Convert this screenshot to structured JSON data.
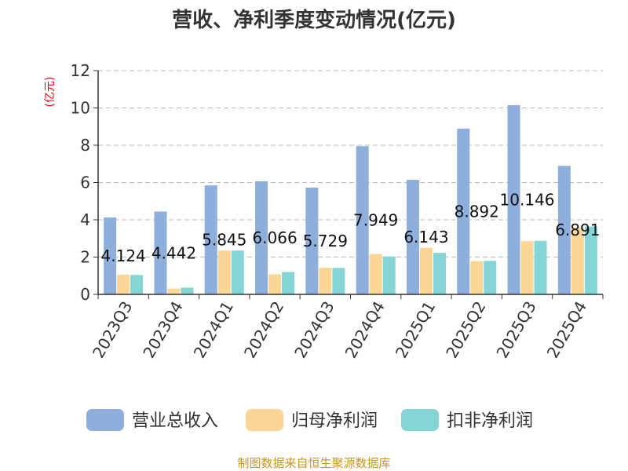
{
  "chart_data": {
    "type": "bar",
    "title": "营收、净利季度变动情况(亿元)",
    "ylabel": "(亿元)",
    "xlabel": "",
    "ylim": [
      0,
      12
    ],
    "yticks": [
      0,
      2,
      4,
      6,
      8,
      10,
      12
    ],
    "grid": true,
    "legend_position": "bottom",
    "categories": [
      "2023Q3",
      "2023Q4",
      "2024Q1",
      "2024Q2",
      "2024Q3",
      "2024Q4",
      "2025Q1",
      "2025Q2",
      "2025Q3",
      "2025Q4"
    ],
    "series": [
      {
        "name": "营业总收入",
        "color": "#8eaedc",
        "values": [
          4.124,
          4.442,
          5.845,
          6.066,
          5.729,
          7.949,
          6.143,
          8.892,
          10.146,
          6.891
        ],
        "labels": [
          "4.124",
          "4.442",
          "5.845",
          "6.066",
          "5.729",
          "7.949",
          "6.143",
          "8.892",
          "10.146",
          "6.891"
        ]
      },
      {
        "name": "归母净利润",
        "color": "#fcd696",
        "values": [
          1.06,
          0.31,
          2.35,
          1.08,
          1.43,
          2.17,
          2.5,
          1.78,
          2.86,
          3.58
        ]
      },
      {
        "name": "扣非净利润",
        "color": "#85d4d6",
        "values": [
          1.04,
          0.36,
          2.35,
          1.2,
          1.42,
          2.03,
          2.23,
          1.8,
          2.87,
          3.64
        ]
      }
    ],
    "source": "制图数据来自恒生聚源数据库"
  }
}
